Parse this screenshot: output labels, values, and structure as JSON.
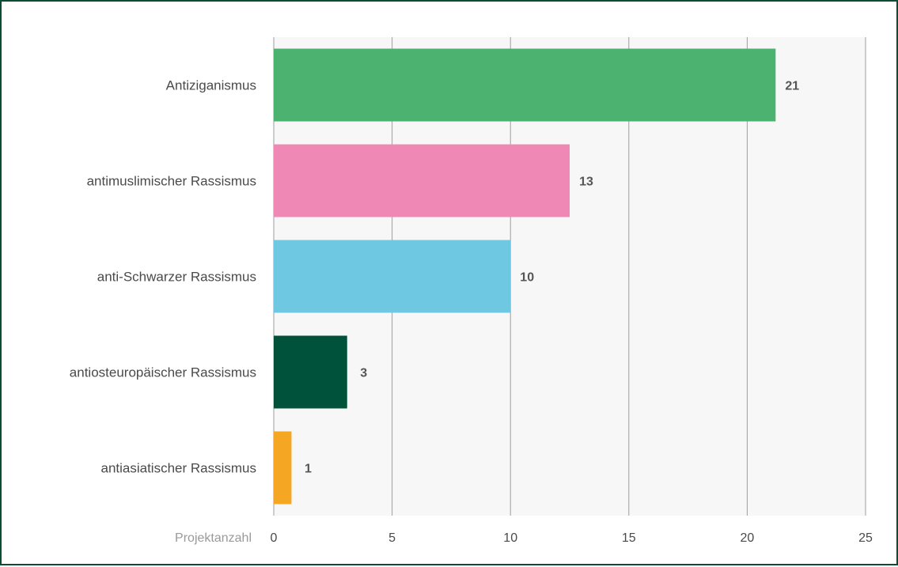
{
  "chart_data": {
    "type": "bar",
    "orientation": "horizontal",
    "categories": [
      "Antiziganismus",
      "antimuslimischer Rassismus",
      "anti-Schwarzer Rassismus",
      "antiosteuropäischer Rassismus",
      "antiasiatischer Rassismus"
    ],
    "values": [
      21,
      13,
      10,
      3,
      1
    ],
    "bar_lengths": [
      21.2,
      12.5,
      10,
      3.1,
      0.75
    ],
    "value_labels": [
      "21",
      "13",
      "10",
      "3",
      "1"
    ],
    "colors": [
      "#4bb270",
      "#ef88b5",
      "#6fc8e2",
      "#00533a",
      "#f5a623"
    ],
    "xlabel": "Projektanzahl",
    "ylabel": "",
    "title": "",
    "xlim": [
      0,
      25
    ],
    "xticks": [
      0,
      5,
      10,
      15,
      20,
      25
    ],
    "grid": "vertical",
    "legend": "none"
  }
}
